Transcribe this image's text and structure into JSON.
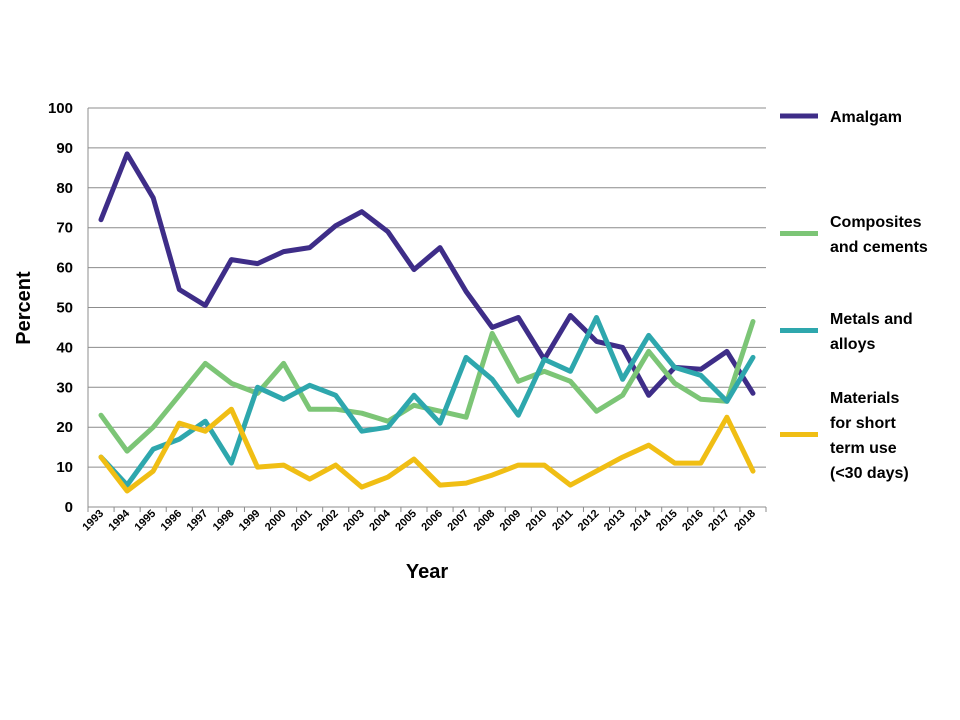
{
  "chart_data": {
    "type": "line",
    "title": "",
    "xlabel": "Year",
    "ylabel": "Percent",
    "ylim": [
      0,
      100
    ],
    "yticks": [
      0,
      10,
      20,
      30,
      40,
      50,
      60,
      70,
      80,
      90,
      100
    ],
    "grid": "horizontal",
    "legend_position": "right",
    "categories": [
      "1993",
      "1994",
      "1995",
      "1996",
      "1997",
      "1998",
      "1999",
      "2000",
      "2001",
      "2002",
      "2003",
      "2004",
      "2005",
      "2006",
      "2007",
      "2008",
      "2009",
      "2010",
      "2011",
      "2012",
      "2013",
      "2014",
      "2015",
      "2016",
      "2017",
      "2018"
    ],
    "series": [
      {
        "name": "Amalgam",
        "legend_lines": [
          "Amalgam"
        ],
        "color": "#3e2d88",
        "values": [
          72,
          88.5,
          77.5,
          54.5,
          50.5,
          62,
          61,
          64,
          65,
          70.5,
          74,
          69,
          59.5,
          65,
          54,
          45,
          47.5,
          37,
          48,
          41.5,
          40,
          28,
          35,
          34.5,
          39,
          28.5
        ]
      },
      {
        "name": "Composites and cements",
        "legend_lines": [
          "Composites",
          "and cements"
        ],
        "color": "#7cc576",
        "values": [
          23,
          14,
          20,
          28,
          36,
          31,
          28.5,
          36,
          24.5,
          24.5,
          23.5,
          21.5,
          25.5,
          24,
          22.5,
          43.5,
          31.5,
          34,
          31.5,
          24,
          28,
          39,
          31,
          27,
          26.5,
          46.5
        ]
      },
      {
        "name": "Metals and alloys",
        "legend_lines": [
          "Metals and",
          "alloys"
        ],
        "color": "#2ea7ad",
        "values": [
          12.5,
          5.5,
          14.5,
          17,
          21.5,
          11,
          30,
          27,
          30.5,
          28,
          19,
          20,
          28,
          21,
          37.5,
          32,
          23,
          37,
          34,
          47.5,
          32,
          43,
          35,
          33,
          26.5,
          37.5
        ]
      },
      {
        "name": "Materials for short term use (<30 days)",
        "legend_lines": [
          "Materials",
          "for short",
          "term use",
          "(<30 days)"
        ],
        "color": "#f0be14",
        "values": [
          12.5,
          4,
          9,
          21,
          19,
          24.5,
          10,
          10.5,
          7,
          10.5,
          5,
          7.5,
          12,
          5.5,
          6,
          8,
          10.5,
          10.5,
          5.5,
          9,
          12.5,
          15.5,
          11,
          11,
          22.5,
          9
        ]
      }
    ]
  }
}
